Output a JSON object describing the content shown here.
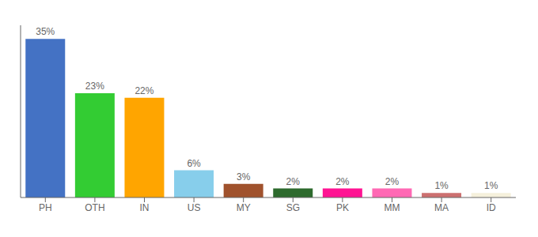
{
  "chart_data": {
    "type": "bar",
    "categories": [
      "PH",
      "OTH",
      "IN",
      "US",
      "MY",
      "SG",
      "PK",
      "MM",
      "MA",
      "ID"
    ],
    "values": [
      35,
      23,
      22,
      6,
      3,
      2,
      2,
      2,
      1,
      1
    ],
    "value_labels": [
      "35%",
      "23%",
      "22%",
      "6%",
      "3%",
      "2%",
      "2%",
      "2%",
      "1%",
      "1%"
    ],
    "colors": [
      "#4472C4",
      "#33CC33",
      "#FFA500",
      "#87CEEB",
      "#A0522D",
      "#2D6A2D",
      "#FF1493",
      "#FF69B4",
      "#CC7070",
      "#F5F0DC"
    ],
    "ylim": [
      0,
      38
    ],
    "data_labels": true,
    "tick_labels": "x",
    "grid": false
  }
}
